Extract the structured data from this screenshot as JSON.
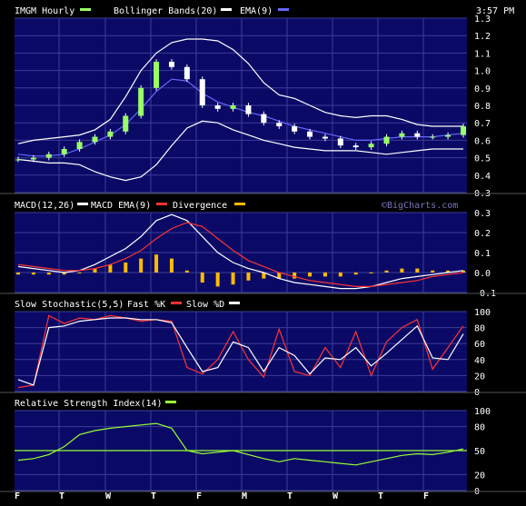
{
  "header": {
    "symbol_label": "IMGM Hourly",
    "bollinger_label": "Bollinger Bands(20)",
    "ema_label": "EMA(9)",
    "time_label": "3:57 PM"
  },
  "colors": {
    "panel_bg": "#0a0a66",
    "grid": "#3c3c99",
    "candle_up": "#99ff66",
    "candle_down": "#ffffff",
    "bollinger": "#ffffff",
    "ema": "#6666ff",
    "macd": "#ffffff",
    "macd_ema": "#ff3333",
    "divergence": "#ffbb00",
    "fastk": "#ff3333",
    "slowd": "#ffffff",
    "rsi": "#99ff33"
  },
  "x_axis": {
    "labels": [
      "F",
      "T",
      "W",
      "T",
      "F",
      "M",
      "T",
      "W",
      "T",
      "F"
    ]
  },
  "watermark": "©BigCharts.com",
  "chart_data": [
    {
      "type": "line",
      "title": "IMGM Hourly",
      "ylim": [
        0.3,
        1.3
      ],
      "y_ticks": [
        "1.3",
        "1.2",
        "1.1",
        "1.0",
        "0.9",
        "0.8",
        "0.7",
        "0.6",
        "0.5",
        "0.4",
        "0.3"
      ],
      "grid": true,
      "legend_position": "top-left",
      "series": [
        {
          "name": "Upper Bollinger",
          "values": [
            0.58,
            0.6,
            0.61,
            0.62,
            0.63,
            0.66,
            0.72,
            0.85,
            1.0,
            1.1,
            1.16,
            1.18,
            1.18,
            1.17,
            1.12,
            1.04,
            0.93,
            0.86,
            0.84,
            0.8,
            0.76,
            0.74,
            0.73,
            0.74,
            0.74,
            0.72,
            0.69,
            0.68,
            0.68,
            0.68
          ]
        },
        {
          "name": "Lower Bollinger",
          "values": [
            0.49,
            0.48,
            0.47,
            0.47,
            0.46,
            0.42,
            0.39,
            0.37,
            0.39,
            0.46,
            0.57,
            0.67,
            0.71,
            0.7,
            0.66,
            0.63,
            0.6,
            0.58,
            0.56,
            0.55,
            0.54,
            0.54,
            0.54,
            0.53,
            0.52,
            0.53,
            0.54,
            0.55,
            0.55,
            0.55
          ]
        },
        {
          "name": "EMA(9)",
          "values": [
            0.52,
            0.51,
            0.51,
            0.52,
            0.55,
            0.59,
            0.63,
            0.69,
            0.78,
            0.88,
            0.95,
            0.94,
            0.87,
            0.82,
            0.79,
            0.76,
            0.74,
            0.71,
            0.68,
            0.66,
            0.64,
            0.62,
            0.6,
            0.6,
            0.61,
            0.62,
            0.62,
            0.62,
            0.63,
            0.64
          ]
        },
        {
          "name": "Price",
          "values": [
            0.49,
            0.5,
            0.52,
            0.55,
            0.59,
            0.62,
            0.65,
            0.74,
            0.9,
            1.05,
            1.02,
            0.95,
            0.8,
            0.78,
            0.8,
            0.75,
            0.7,
            0.68,
            0.65,
            0.62,
            0.61,
            0.57,
            0.56,
            0.58,
            0.62,
            0.64,
            0.62,
            0.62,
            0.63,
            0.68
          ]
        }
      ]
    },
    {
      "type": "line",
      "title": "MACD(12,26)",
      "ylim": [
        -0.1,
        0.3
      ],
      "y_ticks": [
        "0.3",
        "0.2",
        "0.1",
        "0.0",
        "-0.1"
      ],
      "series": [
        {
          "name": "MACD(12,26)",
          "values": [
            0.03,
            0.02,
            0.01,
            0.0,
            0.01,
            0.04,
            0.08,
            0.12,
            0.18,
            0.26,
            0.29,
            0.26,
            0.18,
            0.1,
            0.05,
            0.02,
            0.0,
            -0.03,
            -0.05,
            -0.06,
            -0.07,
            -0.08,
            -0.08,
            -0.07,
            -0.05,
            -0.03,
            -0.02,
            -0.01,
            0.0,
            0.01
          ]
        },
        {
          "name": "MACD EMA(9)",
          "values": [
            0.04,
            0.03,
            0.02,
            0.01,
            0.01,
            0.02,
            0.04,
            0.07,
            0.11,
            0.17,
            0.22,
            0.25,
            0.23,
            0.17,
            0.11,
            0.06,
            0.03,
            0.0,
            -0.02,
            -0.04,
            -0.05,
            -0.06,
            -0.07,
            -0.07,
            -0.06,
            -0.05,
            -0.04,
            -0.02,
            -0.01,
            0.0
          ]
        },
        {
          "name": "Divergence",
          "values": [
            -0.01,
            -0.01,
            -0.01,
            -0.01,
            0.0,
            0.02,
            0.04,
            0.05,
            0.07,
            0.09,
            0.07,
            0.01,
            -0.05,
            -0.07,
            -0.06,
            -0.04,
            -0.03,
            -0.03,
            -0.03,
            -0.02,
            -0.02,
            -0.02,
            -0.01,
            0.0,
            0.01,
            0.02,
            0.02,
            0.01,
            0.01,
            0.01
          ]
        }
      ]
    },
    {
      "type": "line",
      "title": "Slow Stochastic(5,5)",
      "ylim": [
        0,
        100
      ],
      "y_ticks": [
        "100",
        "80",
        "60",
        "40",
        "20",
        "0"
      ],
      "series": [
        {
          "name": "Fast %K",
          "values": [
            5,
            8,
            95,
            85,
            92,
            90,
            95,
            92,
            88,
            90,
            88,
            30,
            22,
            40,
            75,
            40,
            18,
            78,
            25,
            20,
            55,
            30,
            75,
            20,
            62,
            80,
            90,
            28,
            55,
            82
          ]
        },
        {
          "name": "Slow %D",
          "values": [
            15,
            8,
            80,
            82,
            88,
            90,
            92,
            92,
            90,
            90,
            86,
            55,
            25,
            30,
            62,
            55,
            25,
            55,
            45,
            22,
            42,
            40,
            55,
            32,
            48,
            65,
            82,
            42,
            40,
            72
          ]
        }
      ]
    },
    {
      "type": "line",
      "title": "Relative Strength Index(14)",
      "ylim": [
        0,
        100
      ],
      "y_ticks": [
        "100",
        "80",
        "50",
        "20",
        "0"
      ],
      "reference_line": 50,
      "series": [
        {
          "name": "RSI(14)",
          "values": [
            38,
            40,
            45,
            55,
            70,
            75,
            78,
            80,
            82,
            84,
            78,
            50,
            46,
            48,
            50,
            45,
            40,
            36,
            40,
            38,
            36,
            34,
            32,
            36,
            40,
            44,
            46,
            45,
            48,
            52
          ]
        }
      ]
    }
  ],
  "panels": {
    "macd": {
      "label_a": "MACD(12,26)",
      "label_b": "MACD EMA(9)",
      "label_c": "Divergence"
    },
    "stoch": {
      "label_a": "Slow Stochastic(5,5)",
      "label_b": "Fast %K",
      "label_c": "Slow %D"
    },
    "rsi": {
      "label_a": "Relative Strength Index(14)"
    }
  }
}
